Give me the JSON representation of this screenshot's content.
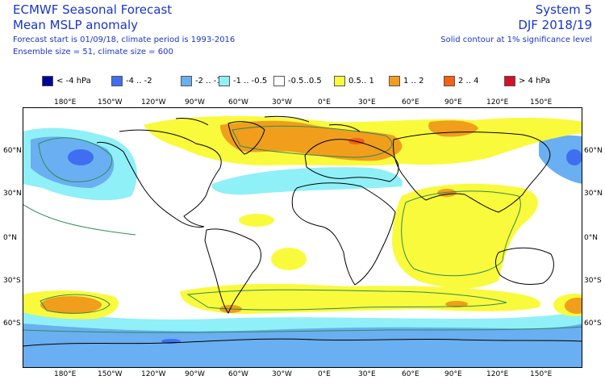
{
  "header": {
    "title": "ECMWF Seasonal Forecast",
    "subtitle": "Mean MSLP anomaly",
    "forecast_line": "Forecast start is 01/09/18, climate period is 1993-2016",
    "ensemble_line": "Ensemble size = 51, climate size = 600",
    "system": "System 5",
    "season": "DJF 2018/19",
    "contour_note": "Solid contour at 1% significance level"
  },
  "legend": [
    {
      "label": "< -4 hPa",
      "color": "#00009c"
    },
    {
      "label": "-4 .. -2",
      "color": "#3f6ff0"
    },
    {
      "label": "-2 .. -1",
      "color": "#6aaff1"
    },
    {
      "label": "-1 .. -0.5",
      "color": "#8ff0f8"
    },
    {
      "label": "-0.5..0.5",
      "color": "#ffffff"
    },
    {
      "label": "0.5.. 1",
      "color": "#fafa3c"
    },
    {
      "label": "1 .. 2",
      "color": "#f09e1c"
    },
    {
      "label": "2 .. 4",
      "color": "#f56012"
    },
    {
      "label": "> 4 hPa",
      "color": "#d2112a"
    }
  ],
  "lon_ticks": [
    "180°E",
    "150°W",
    "120°W",
    "90°W",
    "60°W",
    "30°W",
    "0°E",
    "30°E",
    "60°E",
    "90°E",
    "120°E",
    "150°E"
  ],
  "lat_ticks": [
    "60°N",
    "30°N",
    "0°N",
    "30°S",
    "60°S"
  ]
}
